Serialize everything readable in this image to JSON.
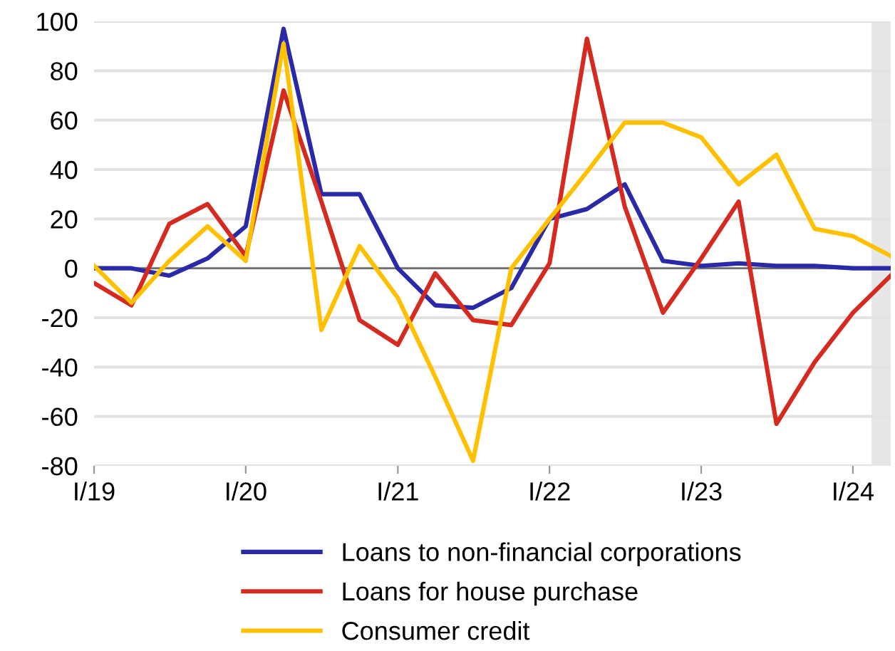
{
  "chart_data": {
    "type": "line",
    "x": [
      "2019-01",
      "2019-04",
      "2019-07",
      "2019-10",
      "2020-01",
      "2020-04",
      "2020-07",
      "2020-10",
      "2021-01",
      "2021-04",
      "2021-07",
      "2021-10",
      "2022-01",
      "2022-04",
      "2022-07",
      "2022-10",
      "2023-01",
      "2023-04",
      "2023-07",
      "2023-10",
      "2024-01",
      "2024-04"
    ],
    "xlim": [
      "2019-01",
      "2024-04"
    ],
    "xticks": [
      {
        "value": "2019-01",
        "label": "I/19"
      },
      {
        "value": "2020-01",
        "label": "I/20"
      },
      {
        "value": "2021-01",
        "label": "I/21"
      },
      {
        "value": "2022-01",
        "label": "I/22"
      },
      {
        "value": "2023-01",
        "label": "I/23"
      },
      {
        "value": "2024-01",
        "label": "I/24"
      }
    ],
    "series": [
      {
        "name": "Loans to non-financial corporations",
        "color": "#2a2aa8",
        "values": [
          0,
          0,
          -3,
          4,
          17,
          97,
          30,
          30,
          0,
          -15,
          -16,
          -8,
          20,
          24,
          34,
          3,
          1,
          2,
          1,
          1,
          0,
          0
        ]
      },
      {
        "name": "Loans for house purchase",
        "color": "#d42a20",
        "values": [
          -6,
          -15,
          18,
          26,
          5,
          72,
          27,
          -21,
          -31,
          -2,
          -21,
          -23,
          2,
          93,
          25,
          -18,
          4,
          27,
          -63,
          -38,
          -18,
          -3
        ]
      },
      {
        "name": "Consumer credit",
        "color": "#ffc000",
        "values": [
          1,
          -14,
          3,
          17,
          3,
          91,
          -25,
          9,
          -12,
          -44,
          -78,
          0,
          20,
          39,
          59,
          59,
          53,
          34,
          46,
          16,
          13,
          5
        ]
      }
    ],
    "ylim": [
      -80,
      100
    ],
    "yticks": [
      -80,
      -60,
      -40,
      -20,
      0,
      20,
      40,
      60,
      80,
      100
    ],
    "grid": "y",
    "legend": "bottom",
    "marker": "none",
    "line_style": "solid",
    "ref_lines": [
      {
        "axis": "y",
        "value": 0,
        "color": "#707070"
      }
    ],
    "bands": [
      {
        "axis": "x",
        "from": "2024-02-15",
        "to": "2024-04",
        "color": "#e6e6e6"
      }
    ]
  }
}
